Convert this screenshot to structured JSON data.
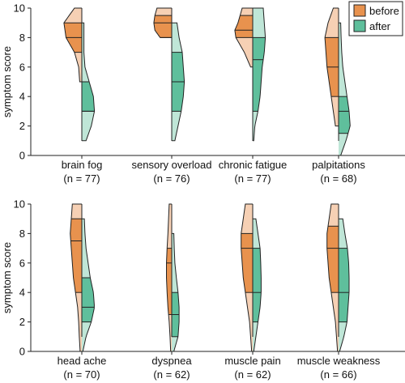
{
  "chart_data": {
    "type": "split violin",
    "ylabel": "symptom score",
    "ylim": [
      0,
      10
    ],
    "yticks": [
      0,
      2,
      4,
      6,
      8,
      10
    ],
    "legend": {
      "placement": "top-right",
      "entries": [
        {
          "label": "before",
          "color": "#e8924e"
        },
        {
          "label": "after",
          "color": "#5fbf9c"
        }
      ]
    },
    "colors": {
      "before_dark": "#e8924e",
      "before_light": "#f6d0b4",
      "after_dark": "#5fbf9c",
      "after_light": "#bfe6d7",
      "outline": "#222222"
    },
    "panels": [
      {
        "row": "top",
        "symptoms": [
          {
            "name": "brain fog",
            "n_label": "(n = 77)",
            "before": {
              "min": 5,
              "q1": 7,
              "median": 8,
              "q3": 9,
              "max": 10,
              "width_at": [
                [
                  5,
                  0.1
                ],
                [
                  6,
                  0.15
                ],
                [
                  7,
                  0.35
                ],
                [
                  8,
                  0.75
                ],
                [
                  9,
                  0.85
                ],
                [
                  10,
                  0.35
                ]
              ]
            },
            "after": {
              "min": 1,
              "q1": 3,
              "median": 3,
              "q3": 5,
              "max": 9,
              "width_at": [
                [
                  1,
                  0.2
                ],
                [
                  2,
                  0.45
                ],
                [
                  3,
                  0.6
                ],
                [
                  4,
                  0.55
                ],
                [
                  5,
                  0.35
                ],
                [
                  6,
                  0.15
                ],
                [
                  7,
                  0.1
                ],
                [
                  8,
                  0.1
                ],
                [
                  9,
                  0.1
                ]
              ]
            }
          },
          {
            "name": "sensory overload",
            "n_label": "(n = 76)",
            "before": {
              "min": 8,
              "q1": 8,
              "median": 9,
              "q3": 9.5,
              "max": 10,
              "width_at": [
                [
                  7.8,
                  0.1
                ],
                [
                  8,
                  0.55
                ],
                [
                  8.5,
                  0.8
                ],
                [
                  9,
                  0.85
                ],
                [
                  9.5,
                  0.8
                ],
                [
                  10,
                  0.7
                ]
              ]
            },
            "after": {
              "min": 1,
              "q1": 3,
              "median": 5,
              "q3": 7,
              "max": 9,
              "width_at": [
                [
                  1,
                  0.15
                ],
                [
                  2,
                  0.3
                ],
                [
                  3,
                  0.45
                ],
                [
                  4,
                  0.55
                ],
                [
                  5,
                  0.6
                ],
                [
                  6,
                  0.55
                ],
                [
                  7,
                  0.5
                ],
                [
                  8,
                  0.35
                ],
                [
                  9,
                  0.25
                ]
              ]
            }
          },
          {
            "name": "chronic fatigue",
            "n_label": "(n = 77)",
            "before": {
              "min": 6,
              "q1": 8,
              "median": 8.5,
              "q3": 9.5,
              "max": 10,
              "width_at": [
                [
                  6,
                  0.1
                ],
                [
                  7,
                  0.4
                ],
                [
                  8,
                  0.8
                ],
                [
                  8.5,
                  0.85
                ],
                [
                  9,
                  0.7
                ],
                [
                  9.5,
                  0.6
                ],
                [
                  10,
                  0.5
                ]
              ]
            },
            "after": {
              "min": 1,
              "q1": 3,
              "median": 6.5,
              "q3": 8,
              "max": 10,
              "width_at": [
                [
                  1,
                  0.05
                ],
                [
                  2,
                  0.1
                ],
                [
                  3,
                  0.25
                ],
                [
                  4,
                  0.35
                ],
                [
                  5,
                  0.4
                ],
                [
                  6,
                  0.45
                ],
                [
                  7,
                  0.55
                ],
                [
                  8,
                  0.6
                ],
                [
                  9,
                  0.55
                ],
                [
                  10,
                  0.5
                ]
              ]
            }
          },
          {
            "name": "palpitations",
            "n_label": "(n = 68)",
            "before": {
              "min": 2,
              "q1": 4,
              "median": 6,
              "q3": 8,
              "max": 10,
              "width_at": [
                [
                  2,
                  0.15
                ],
                [
                  3,
                  0.25
                ],
                [
                  4,
                  0.35
                ],
                [
                  5,
                  0.45
                ],
                [
                  6,
                  0.55
                ],
                [
                  7,
                  0.6
                ],
                [
                  8,
                  0.65
                ],
                [
                  9,
                  0.5
                ],
                [
                  10,
                  0.25
                ]
              ]
            },
            "after": {
              "min": 0,
              "q1": 1.5,
              "median": 3,
              "q3": 4,
              "max": 9,
              "width_at": [
                [
                  0,
                  0.1
                ],
                [
                  1,
                  0.35
                ],
                [
                  2,
                  0.55
                ],
                [
                  3,
                  0.5
                ],
                [
                  4,
                  0.4
                ],
                [
                  5,
                  0.3
                ],
                [
                  6,
                  0.2
                ],
                [
                  7,
                  0.15
                ],
                [
                  8,
                  0.12
                ],
                [
                  9,
                  0.1
                ]
              ]
            }
          }
        ]
      },
      {
        "row": "bottom",
        "symptoms": [
          {
            "name": "head ache",
            "n_label": "(n = 70)",
            "before": {
              "min": 0,
              "q1": 4,
              "median": 7.5,
              "q3": 9,
              "max": 10,
              "width_at": [
                [
                  0,
                  0.08
                ],
                [
                  1,
                  0.12
                ],
                [
                  2,
                  0.15
                ],
                [
                  3,
                  0.2
                ],
                [
                  4,
                  0.3
                ],
                [
                  5,
                  0.4
                ],
                [
                  6,
                  0.45
                ],
                [
                  7,
                  0.5
                ],
                [
                  8,
                  0.55
                ],
                [
                  9,
                  0.5
                ],
                [
                  10,
                  0.45
                ]
              ]
            },
            "after": {
              "min": 0,
              "q1": 2,
              "median": 3,
              "q3": 5,
              "max": 9,
              "width_at": [
                [
                  0,
                  0.05
                ],
                [
                  1,
                  0.2
                ],
                [
                  2,
                  0.45
                ],
                [
                  3,
                  0.6
                ],
                [
                  4,
                  0.55
                ],
                [
                  5,
                  0.4
                ],
                [
                  6,
                  0.3
                ],
                [
                  7,
                  0.2
                ],
                [
                  8,
                  0.15
                ],
                [
                  9,
                  0.12
                ]
              ]
            }
          },
          {
            "name": "dyspnea",
            "n_label": "(n = 62)",
            "before": {
              "min": 0,
              "q1": 2.5,
              "median": 6,
              "q3": 7,
              "max": 10,
              "width_at": [
                [
                  0,
                  0.05
                ],
                [
                  1,
                  0.08
                ],
                [
                  2,
                  0.12
                ],
                [
                  3,
                  0.18
                ],
                [
                  4,
                  0.22
                ],
                [
                  5,
                  0.25
                ],
                [
                  6,
                  0.25
                ],
                [
                  7,
                  0.22
                ],
                [
                  8,
                  0.18
                ],
                [
                  9,
                  0.15
                ],
                [
                  10,
                  0.12
                ]
              ]
            },
            "after": {
              "min": 0,
              "q1": 1,
              "median": 2.5,
              "q3": 4,
              "max": 8,
              "width_at": [
                [
                  0,
                  0.1
                ],
                [
                  1,
                  0.3
                ],
                [
                  2,
                  0.35
                ],
                [
                  3,
                  0.35
                ],
                [
                  4,
                  0.3
                ],
                [
                  5,
                  0.22
                ],
                [
                  6,
                  0.15
                ],
                [
                  7,
                  0.12
                ],
                [
                  8,
                  0.1
                ]
              ]
            }
          },
          {
            "name": "muscle pain",
            "n_label": "(n = 62)",
            "before": {
              "min": 0,
              "q1": 4,
              "median": 7,
              "q3": 8,
              "max": 10,
              "width_at": [
                [
                  0,
                  0.05
                ],
                [
                  1,
                  0.1
                ],
                [
                  2,
                  0.15
                ],
                [
                  3,
                  0.25
                ],
                [
                  4,
                  0.35
                ],
                [
                  5,
                  0.45
                ],
                [
                  6,
                  0.5
                ],
                [
                  7,
                  0.55
                ],
                [
                  8,
                  0.55
                ],
                [
                  9,
                  0.45
                ],
                [
                  10,
                  0.35
                ]
              ]
            },
            "after": {
              "min": 0,
              "q1": 2,
              "median": 4,
              "q3": 7,
              "max": 9,
              "width_at": [
                [
                  0,
                  0.05
                ],
                [
                  1,
                  0.15
                ],
                [
                  2,
                  0.25
                ],
                [
                  3,
                  0.35
                ],
                [
                  4,
                  0.4
                ],
                [
                  5,
                  0.4
                ],
                [
                  6,
                  0.38
                ],
                [
                  7,
                  0.35
                ],
                [
                  8,
                  0.25
                ],
                [
                  9,
                  0.15
                ]
              ]
            }
          },
          {
            "name": "muscle weakness",
            "n_label": "(n = 66)",
            "before": {
              "min": 0,
              "q1": 4,
              "median": 7,
              "q3": 8.5,
              "max": 10,
              "width_at": [
                [
                  0,
                  0.05
                ],
                [
                  1,
                  0.1
                ],
                [
                  2,
                  0.15
                ],
                [
                  3,
                  0.25
                ],
                [
                  4,
                  0.35
                ],
                [
                  5,
                  0.45
                ],
                [
                  6,
                  0.5
                ],
                [
                  7,
                  0.55
                ],
                [
                  8,
                  0.55
                ],
                [
                  9,
                  0.45
                ],
                [
                  10,
                  0.35
                ]
              ]
            },
            "after": {
              "min": 0,
              "q1": 2,
              "median": 4,
              "q3": 7,
              "max": 9,
              "width_at": [
                [
                  0,
                  0.05
                ],
                [
                  1,
                  0.25
                ],
                [
                  2,
                  0.4
                ],
                [
                  3,
                  0.45
                ],
                [
                  4,
                  0.5
                ],
                [
                  5,
                  0.5
                ],
                [
                  6,
                  0.48
                ],
                [
                  7,
                  0.42
                ],
                [
                  8,
                  0.3
                ],
                [
                  9,
                  0.2
                ]
              ]
            }
          }
        ]
      }
    ]
  }
}
